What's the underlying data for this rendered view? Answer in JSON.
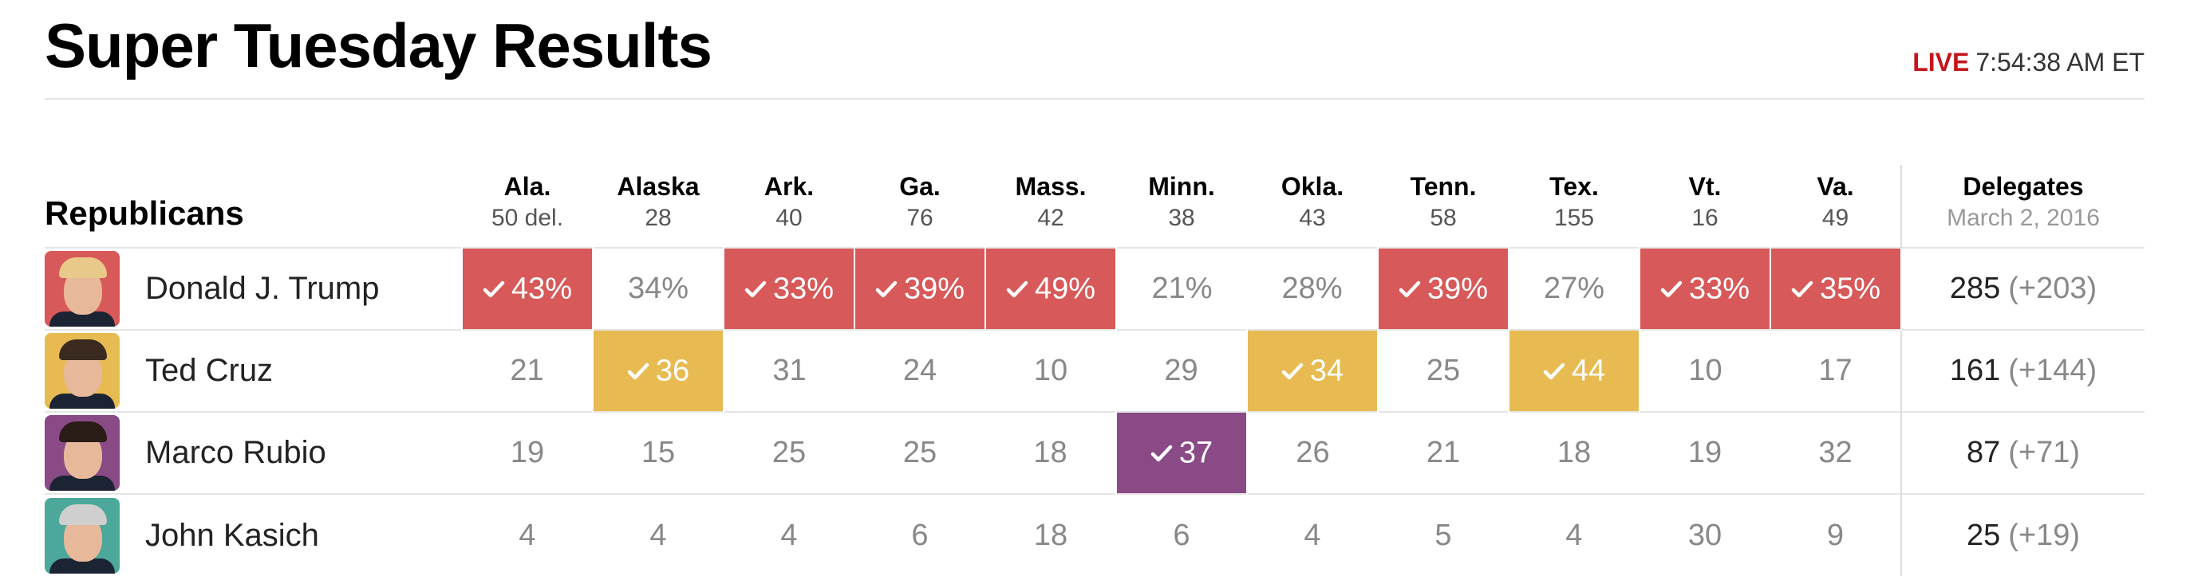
{
  "header": {
    "title": "Super Tuesday Results",
    "live_label": "LIVE",
    "timestamp": "7:54:38 AM ET"
  },
  "table": {
    "party": "Republicans",
    "states": [
      {
        "abbr": "Ala.",
        "delegates": "50 del."
      },
      {
        "abbr": "Alaska",
        "delegates": "28"
      },
      {
        "abbr": "Ark.",
        "delegates": "40"
      },
      {
        "abbr": "Ga.",
        "delegates": "76"
      },
      {
        "abbr": "Mass.",
        "delegates": "42"
      },
      {
        "abbr": "Minn.",
        "delegates": "38"
      },
      {
        "abbr": "Okla.",
        "delegates": "43"
      },
      {
        "abbr": "Tenn.",
        "delegates": "58"
      },
      {
        "abbr": "Tex.",
        "delegates": "155"
      },
      {
        "abbr": "Vt.",
        "delegates": "16"
      },
      {
        "abbr": "Va.",
        "delegates": "49"
      }
    ],
    "delegates_header": "Delegates",
    "delegates_date": "March 2, 2016",
    "candidates": [
      {
        "name": "Donald J. Trump",
        "avatar_bg": "#d85959",
        "hair_color": "#e9c98a",
        "win_color": "#d85959",
        "results": [
          {
            "value": "43%",
            "win": true
          },
          {
            "value": "34%",
            "win": false
          },
          {
            "value": "33%",
            "win": true
          },
          {
            "value": "39%",
            "win": true
          },
          {
            "value": "49%",
            "win": true
          },
          {
            "value": "21%",
            "win": false
          },
          {
            "value": "28%",
            "win": false
          },
          {
            "value": "39%",
            "win": true
          },
          {
            "value": "27%",
            "win": false
          },
          {
            "value": "33%",
            "win": true
          },
          {
            "value": "35%",
            "win": true
          }
        ],
        "delegates": "285",
        "gain": "(+203)"
      },
      {
        "name": "Ted Cruz",
        "avatar_bg": "#e7bb52",
        "hair_color": "#3a2a20",
        "win_color": "#e7bb52",
        "results": [
          {
            "value": "21",
            "win": false
          },
          {
            "value": "36",
            "win": true
          },
          {
            "value": "31",
            "win": false
          },
          {
            "value": "24",
            "win": false
          },
          {
            "value": "10",
            "win": false
          },
          {
            "value": "29",
            "win": false
          },
          {
            "value": "34",
            "win": true
          },
          {
            "value": "25",
            "win": false
          },
          {
            "value": "44",
            "win": true
          },
          {
            "value": "10",
            "win": false
          },
          {
            "value": "17",
            "win": false
          }
        ],
        "delegates": "161",
        "gain": "(+144)"
      },
      {
        "name": "Marco Rubio",
        "avatar_bg": "#8a4a86",
        "hair_color": "#2a1c16",
        "win_color": "#8a4a86",
        "results": [
          {
            "value": "19",
            "win": false
          },
          {
            "value": "15",
            "win": false
          },
          {
            "value": "25",
            "win": false
          },
          {
            "value": "25",
            "win": false
          },
          {
            "value": "18",
            "win": false
          },
          {
            "value": "37",
            "win": true
          },
          {
            "value": "26",
            "win": false
          },
          {
            "value": "21",
            "win": false
          },
          {
            "value": "18",
            "win": false
          },
          {
            "value": "19",
            "win": false
          },
          {
            "value": "32",
            "win": false
          }
        ],
        "delegates": "87",
        "gain": "(+71)"
      },
      {
        "name": "John Kasich",
        "avatar_bg": "#4ba89a",
        "hair_color": "#cfcfcf",
        "win_color": "#4ba89a",
        "results": [
          {
            "value": "4",
            "win": false
          },
          {
            "value": "4",
            "win": false
          },
          {
            "value": "4",
            "win": false
          },
          {
            "value": "6",
            "win": false
          },
          {
            "value": "18",
            "win": false
          },
          {
            "value": "6",
            "win": false
          },
          {
            "value": "4",
            "win": false
          },
          {
            "value": "5",
            "win": false
          },
          {
            "value": "4",
            "win": false
          },
          {
            "value": "30",
            "win": false
          },
          {
            "value": "9",
            "win": false
          }
        ],
        "delegates": "25",
        "gain": "(+19)"
      }
    ]
  }
}
